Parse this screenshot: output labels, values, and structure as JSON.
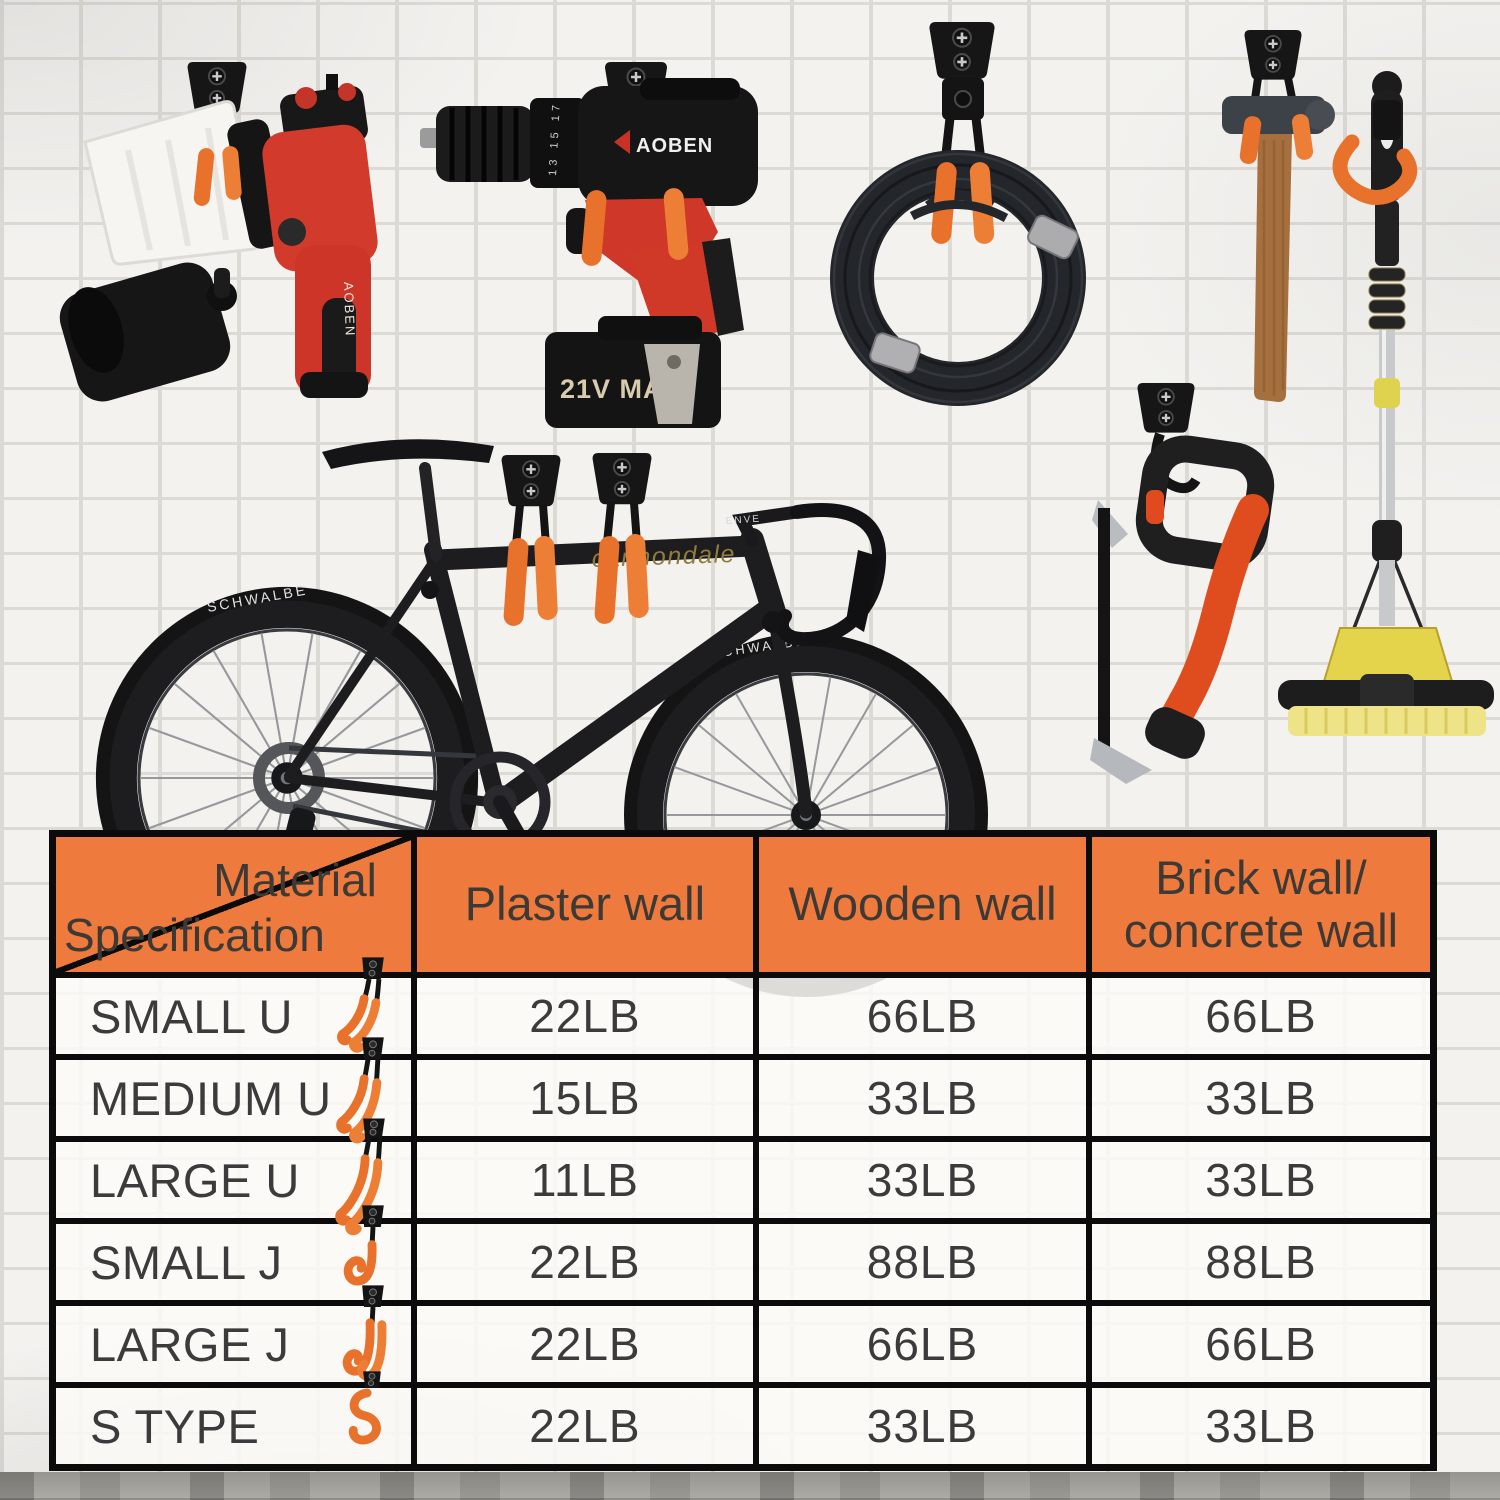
{
  "scene": {
    "tools": {
      "paint_sprayer": {
        "brand": "AOBEN"
      },
      "drill": {
        "brand": "AOBEN",
        "battery_label": "21V MAX",
        "collar_marks": "13 15 17"
      },
      "bicycle": {
        "brand": "cannondale",
        "tire_text": "SCHWALBE",
        "stem_text": "ENVE"
      }
    },
    "colors": {
      "hook_orange": "#E8712B",
      "header_orange": "#EF7A3E",
      "table_border": "#0B0B0B",
      "wall_white": "#F3F2EF",
      "text_dark": "#3B3B3B"
    }
  },
  "table": {
    "corner": {
      "top": "Material",
      "bottom": "Specification"
    },
    "headers": {
      "plaster": "Plaster wall",
      "wooden": "Wooden wall",
      "brick": "Brick wall/\nconcrete wall"
    },
    "rows": [
      {
        "spec": "SMALL U",
        "icon": "u-small",
        "plaster": "22LB",
        "wooden": "66LB",
        "brick": "66LB"
      },
      {
        "spec": "MEDIUM U",
        "icon": "u-medium",
        "plaster": "15LB",
        "wooden": "33LB",
        "brick": "33LB"
      },
      {
        "spec": "LARGE U",
        "icon": "u-large",
        "plaster": "11LB",
        "wooden": "33LB",
        "brick": "33LB"
      },
      {
        "spec": "SMALL J",
        "icon": "j-small",
        "plaster": "22LB",
        "wooden": "88LB",
        "brick": "88LB"
      },
      {
        "spec": "LARGE J",
        "icon": "j-large",
        "plaster": "22LB",
        "wooden": "66LB",
        "brick": "66LB"
      },
      {
        "spec": "S TYPE",
        "icon": "s-type",
        "plaster": "22LB",
        "wooden": "33LB",
        "brick": "33LB"
      }
    ]
  }
}
